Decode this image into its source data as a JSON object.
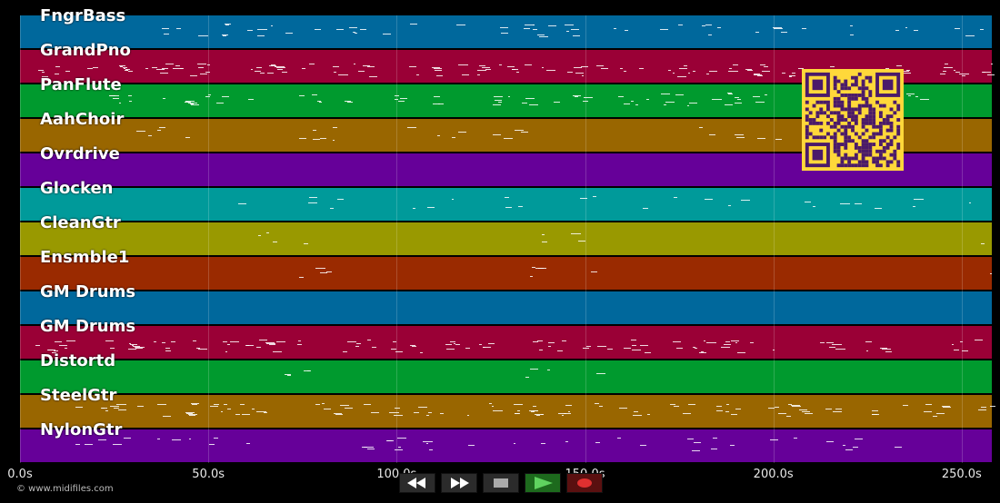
{
  "tracks": [
    {
      "name": "FngrBass",
      "color": "#00689c"
    },
    {
      "name": "GrandPno",
      "color": "#9a0036"
    },
    {
      "name": "PanFlute",
      "color": "#009a2e"
    },
    {
      "name": "AahChoir",
      "color": "#996600"
    },
    {
      "name": "Ovrdrive",
      "color": "#660099"
    },
    {
      "name": "Glocken",
      "color": "#009a9a"
    },
    {
      "name": "CleanGtr",
      "color": "#999900"
    },
    {
      "name": "Ensmble1",
      "color": "#9a2a00"
    },
    {
      "name": "GM Drums",
      "color": "#00689c"
    },
    {
      "name": "GM Drums",
      "color": "#9a0036"
    },
    {
      "name": "Distortd",
      "color": "#009a2e"
    },
    {
      "name": "SteelGtr",
      "color": "#996600"
    },
    {
      "name": "NylonGtr",
      "color": "#660099"
    }
  ],
  "timeline": {
    "ticks": [
      "0.0s",
      "50.0s",
      "100.0s",
      "150.0s",
      "200.0s",
      "250.0s"
    ],
    "tick_seconds": [
      0,
      50,
      100,
      150,
      200,
      250
    ],
    "max_seconds": 258
  },
  "transport": {
    "rewind_icon": "rewind-icon",
    "fast_forward_icon": "fast-forward-icon",
    "stop_icon": "stop-icon",
    "play_icon": "play-icon",
    "record_icon": "record-icon"
  },
  "footer": {
    "copyright": "© www.midifiles.com"
  },
  "colors": {
    "background": "#000000",
    "grid": "#ffffff",
    "qr_background": "#ffd83a",
    "qr_foreground": "#4a1a6a"
  }
}
